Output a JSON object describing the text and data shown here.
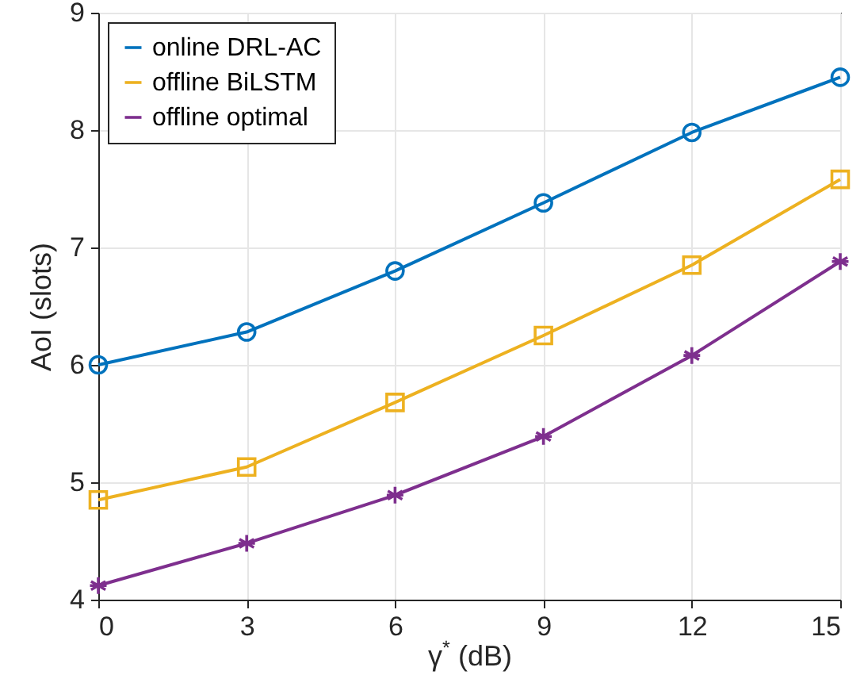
{
  "chart_data": {
    "type": "line",
    "xlabel": "γ$^{*}$ (dB)",
    "ylabel": "AoI (slots)",
    "x": [
      0,
      3,
      6,
      9,
      12,
      15
    ],
    "series": [
      {
        "name": "online DRL-AC",
        "color": "#0072bd",
        "marker": "circle",
        "values": [
          6.0,
          6.28,
          6.8,
          7.38,
          7.98,
          8.45
        ]
      },
      {
        "name": "offline BiLSTM",
        "color": "#edb120",
        "marker": "square",
        "values": [
          4.85,
          5.13,
          5.68,
          6.25,
          6.85,
          7.58
        ]
      },
      {
        "name": "offline optimal",
        "color": "#7e2f8e",
        "marker": "cross",
        "values": [
          4.12,
          4.48,
          4.89,
          5.39,
          6.08,
          6.88
        ]
      }
    ],
    "xlim": [
      0,
      15
    ],
    "xticks": [
      0,
      3,
      6,
      9,
      12,
      15
    ],
    "ylim": [
      4,
      9
    ],
    "yticks": [
      4,
      5,
      6,
      7,
      8,
      9
    ],
    "grid": true,
    "legend": "top left",
    "line_style": "solid"
  }
}
